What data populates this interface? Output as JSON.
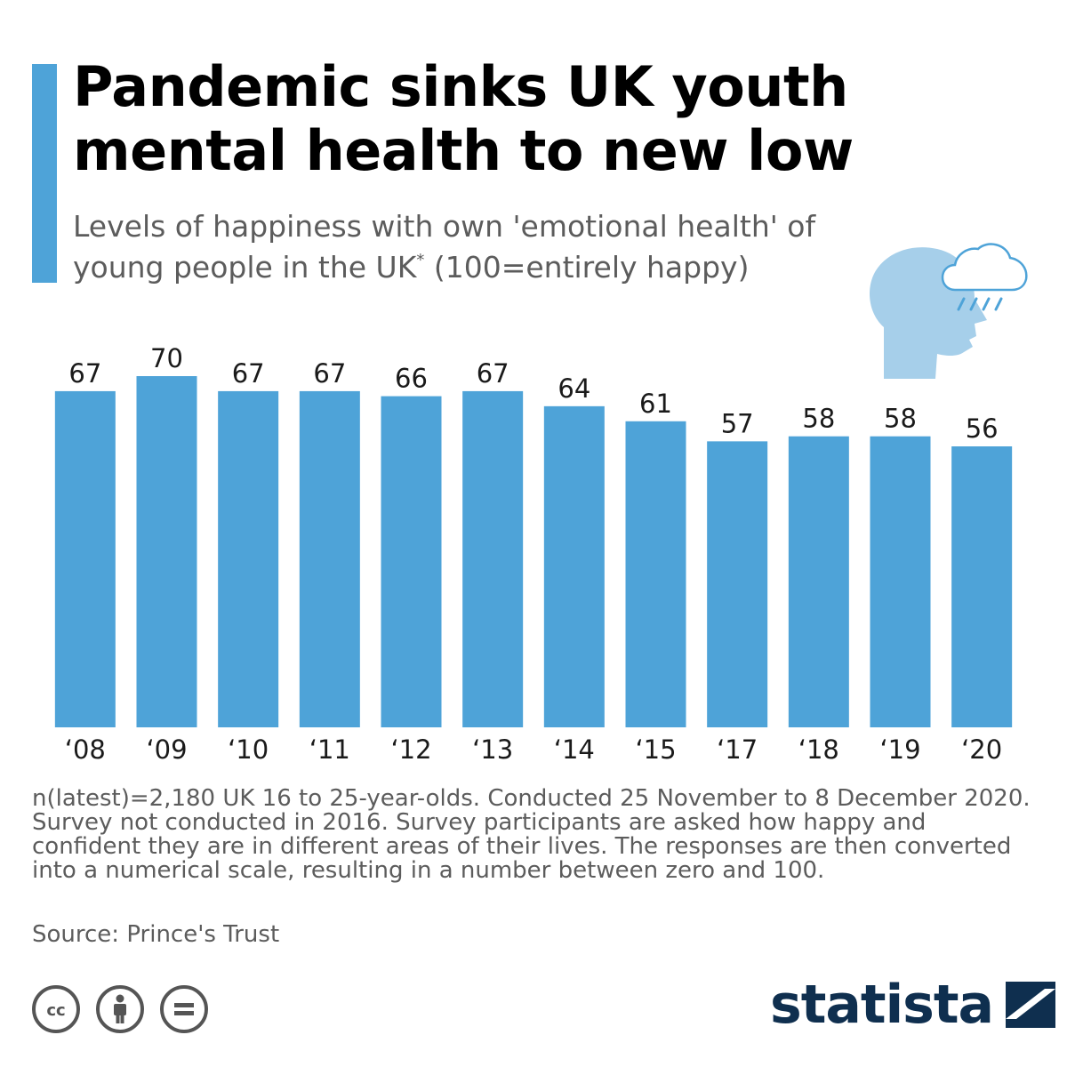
{
  "header": {
    "title_line1": "Pandemic sinks UK youth",
    "title_line2": "mental health to new low",
    "subtitle_line1": "Levels of happiness with own 'emotional health' of",
    "subtitle_line2_a": "young people in the UK",
    "subtitle_line2_sup": "*",
    "subtitle_line2_b": " (100=entirely happy)"
  },
  "illustration": {
    "icon": "head-with-rain-cloud-icon"
  },
  "chart_data": {
    "type": "bar",
    "categories": [
      "‘08",
      "‘09",
      "‘10",
      "‘11",
      "‘12",
      "‘13",
      "‘14",
      "‘15",
      "‘17",
      "‘18",
      "‘19",
      "‘20"
    ],
    "values": [
      67,
      70,
      67,
      67,
      66,
      67,
      64,
      61,
      57,
      58,
      58,
      56
    ],
    "title": "Pandemic sinks UK youth mental health to new low",
    "xlabel": "",
    "ylabel": "",
    "ylim": [
      0,
      70
    ],
    "grid": false,
    "data_labels": true,
    "bar_color": "#4ea3d8"
  },
  "footnote": {
    "line1": "n(latest)=2,180 UK 16 to 25-year-olds. Conducted 25 November to 8 December 2020.",
    "line2": "Survey not conducted in 2016. Survey participants are asked how happy and",
    "line3": "confident they are in different areas of their lives. The responses are then converted",
    "line4": "into a numerical scale, resulting in a number between zero and 100."
  },
  "source": "Source: Prince's Trust",
  "license_icons": [
    "creative-commons-icon",
    "attribution-icon",
    "no-derivatives-icon"
  ],
  "brand": {
    "name": "statista",
    "color": "#0f2f4f",
    "accent": "#4ea3d8"
  }
}
